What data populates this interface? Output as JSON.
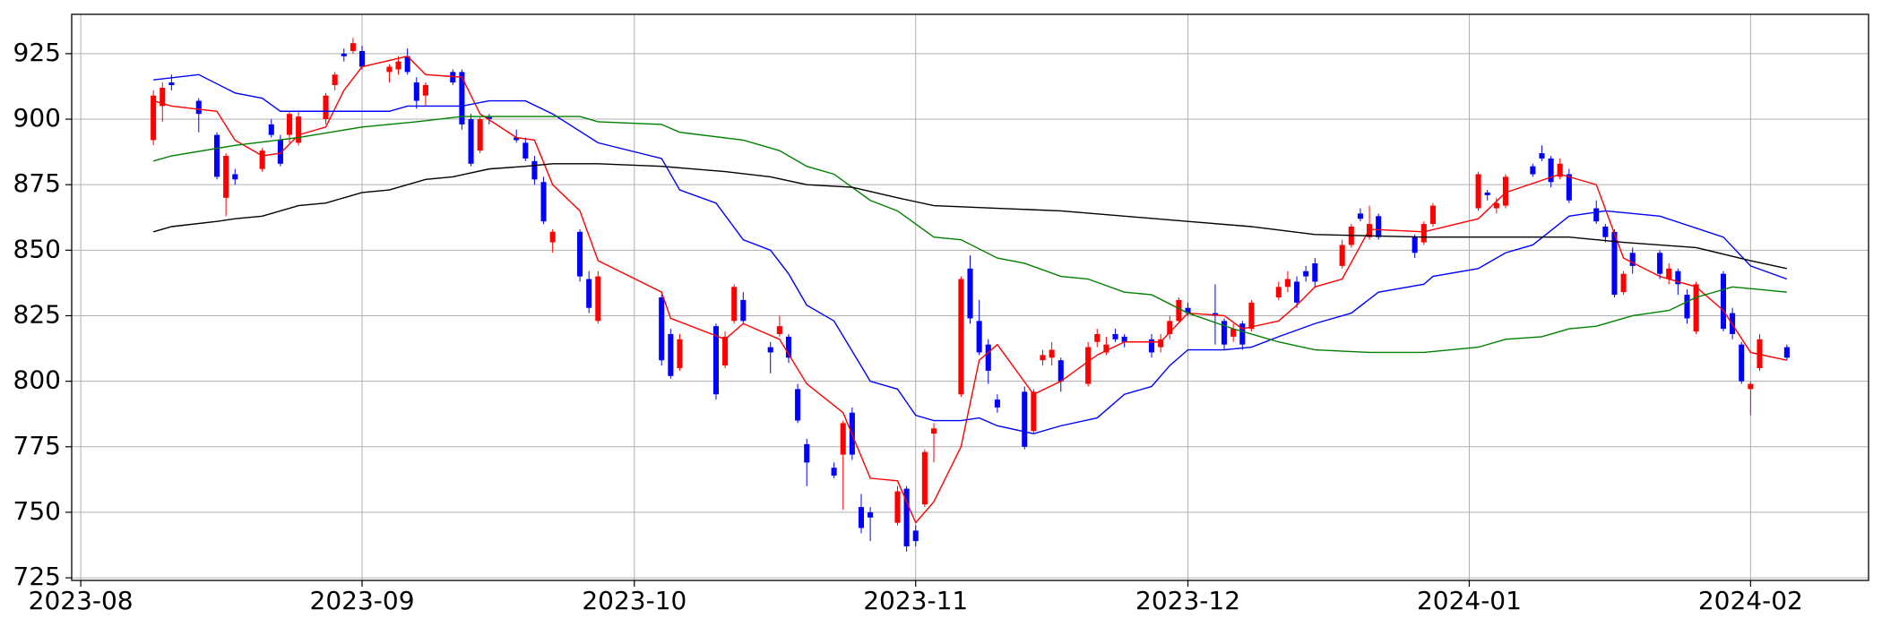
{
  "chart_data": {
    "type": "candlestick",
    "up_color": "#ff0000",
    "down_color": "#0000ff",
    "x": [
      "2023-08-09",
      "2023-08-10",
      "2023-08-11",
      "2023-08-14",
      "2023-08-16",
      "2023-08-17",
      "2023-08-18",
      "2023-08-21",
      "2023-08-22",
      "2023-08-23",
      "2023-08-24",
      "2023-08-25",
      "2023-08-28",
      "2023-08-29",
      "2023-08-30",
      "2023-08-31",
      "2023-09-01",
      "2023-09-04",
      "2023-09-05",
      "2023-09-06",
      "2023-09-07",
      "2023-09-08",
      "2023-09-11",
      "2023-09-12",
      "2023-09-13",
      "2023-09-14",
      "2023-09-15",
      "2023-09-18",
      "2023-09-19",
      "2023-09-20",
      "2023-09-21",
      "2023-09-22",
      "2023-09-25",
      "2023-09-26",
      "2023-09-27",
      "2023-10-04",
      "2023-10-05",
      "2023-10-06",
      "2023-10-10",
      "2023-10-11",
      "2023-10-12",
      "2023-10-13",
      "2023-10-16",
      "2023-10-17",
      "2023-10-18",
      "2023-10-19",
      "2023-10-20",
      "2023-10-23",
      "2023-10-24",
      "2023-10-25",
      "2023-10-26",
      "2023-10-27",
      "2023-10-30",
      "2023-10-31",
      "2023-11-01",
      "2023-11-02",
      "2023-11-03",
      "2023-11-06",
      "2023-11-07",
      "2023-11-08",
      "2023-11-09",
      "2023-11-10",
      "2023-11-13",
      "2023-11-14",
      "2023-11-15",
      "2023-11-16",
      "2023-11-17",
      "2023-11-20",
      "2023-11-21",
      "2023-11-22",
      "2023-11-23",
      "2023-11-24",
      "2023-11-27",
      "2023-11-28",
      "2023-11-29",
      "2023-11-30",
      "2023-12-01",
      "2023-12-04",
      "2023-12-05",
      "2023-12-06",
      "2023-12-07",
      "2023-12-08",
      "2023-12-11",
      "2023-12-12",
      "2023-12-13",
      "2023-12-14",
      "2023-12-15",
      "2023-12-18",
      "2023-12-19",
      "2023-12-20",
      "2023-12-21",
      "2023-12-22",
      "2023-12-26",
      "2023-12-27",
      "2023-12-28",
      "2024-01-02",
      "2024-01-03",
      "2024-01-04",
      "2024-01-05",
      "2024-01-08",
      "2024-01-09",
      "2024-01-10",
      "2024-01-11",
      "2024-01-12",
      "2024-01-15",
      "2024-01-16",
      "2024-01-17",
      "2024-01-18",
      "2024-01-19",
      "2024-01-22",
      "2024-01-23",
      "2024-01-24",
      "2024-01-25",
      "2024-01-26",
      "2024-01-29",
      "2024-01-30",
      "2024-01-31",
      "2024-02-01",
      "2024-02-02",
      "2024-02-05"
    ],
    "open": [
      892,
      905,
      914,
      907,
      894,
      870,
      879,
      881,
      898,
      892,
      894,
      891,
      900,
      913,
      925,
      926,
      926,
      918,
      919,
      924,
      914,
      909,
      918,
      918,
      900,
      888,
      901,
      893,
      891,
      884,
      876,
      853,
      857,
      839,
      823,
      832,
      818,
      805,
      821,
      806,
      823,
      831,
      813,
      818,
      817,
      797,
      776,
      767,
      772,
      788,
      752,
      750,
      746,
      759,
      743,
      753,
      780,
      795,
      843,
      823,
      814,
      793,
      796,
      781,
      808,
      809,
      808,
      799,
      815,
      811,
      818,
      817,
      816,
      813,
      818,
      823,
      828,
      826,
      823,
      817,
      822,
      820,
      832,
      836,
      838,
      842,
      845,
      844,
      852,
      864,
      855,
      863,
      855,
      853,
      860,
      866,
      872,
      866,
      867,
      882,
      887,
      885,
      878,
      879,
      866,
      859,
      857,
      834,
      849,
      849,
      839,
      842,
      833,
      819,
      841,
      826,
      814,
      797,
      805,
      813
    ],
    "high": [
      911,
      914,
      917,
      908,
      895,
      887,
      881,
      889,
      900,
      894,
      903,
      903,
      910,
      918,
      927,
      931,
      928,
      921,
      924,
      927,
      916,
      914,
      919,
      919,
      902,
      901,
      902,
      896,
      893,
      886,
      878,
      858,
      858,
      842,
      842,
      833,
      820,
      818,
      822,
      819,
      837,
      834,
      815,
      825,
      818,
      799,
      778,
      769,
      785,
      790,
      757,
      752,
      760,
      760,
      745,
      774,
      784,
      840,
      848,
      831,
      816,
      795,
      798,
      797,
      812,
      815,
      809,
      815,
      820,
      817,
      820,
      818,
      818,
      818,
      825,
      832,
      830,
      837,
      824,
      822,
      823,
      831,
      838,
      842,
      840,
      844,
      847,
      854,
      860,
      866,
      867,
      864,
      856,
      861,
      868,
      880,
      873,
      870,
      879,
      883,
      890,
      886,
      885,
      881,
      869,
      860,
      858,
      842,
      851,
      850,
      845,
      843,
      835,
      838,
      842,
      828,
      815,
      800,
      818,
      814
    ],
    "low": [
      890,
      899,
      911,
      895,
      877,
      863,
      875,
      880,
      893,
      882,
      891,
      890,
      898,
      911,
      922,
      925,
      919,
      914,
      917,
      917,
      904,
      905,
      913,
      896,
      882,
      887,
      898,
      891,
      884,
      875,
      860,
      849,
      838,
      826,
      822,
      806,
      801,
      804,
      793,
      805,
      822,
      822,
      803,
      817,
      807,
      784,
      760,
      763,
      751,
      770,
      742,
      739,
      745,
      735,
      737,
      752,
      769,
      794,
      822,
      810,
      799,
      788,
      774,
      780,
      806,
      806,
      796,
      798,
      813,
      810,
      815,
      813,
      809,
      811,
      816,
      822,
      825,
      814,
      812,
      815,
      812,
      819,
      831,
      834,
      828,
      838,
      836,
      843,
      851,
      861,
      854,
      854,
      847,
      852,
      859,
      865,
      869,
      864,
      866,
      878,
      884,
      874,
      877,
      868,
      860,
      853,
      832,
      833,
      841,
      839,
      837,
      833,
      822,
      818,
      819,
      816,
      799,
      787,
      804,
      808
    ],
    "close": [
      909,
      912,
      913,
      902,
      878,
      886,
      877,
      888,
      894,
      883,
      902,
      901,
      909,
      917,
      924,
      929,
      920,
      920,
      922,
      918,
      907,
      913,
      914,
      898,
      883,
      900,
      900,
      892,
      885,
      877,
      861,
      857,
      840,
      828,
      840,
      808,
      802,
      816,
      795,
      817,
      836,
      823,
      811,
      821,
      809,
      785,
      769,
      764,
      784,
      772,
      744,
      748,
      758,
      737,
      739,
      773,
      782,
      839,
      824,
      811,
      804,
      790,
      775,
      796,
      810,
      812,
      800,
      813,
      818,
      814,
      816,
      815,
      811,
      816,
      823,
      831,
      826,
      825,
      814,
      820,
      814,
      830,
      836,
      839,
      830,
      840,
      838,
      852,
      859,
      862,
      860,
      855,
      849,
      860,
      867,
      879,
      871,
      868,
      878,
      879,
      885,
      876,
      883,
      869,
      861,
      855,
      833,
      841,
      844,
      841,
      843,
      837,
      824,
      837,
      820,
      818,
      800,
      799,
      816,
      809
    ],
    "series": [
      {
        "color": "#ff0000",
        "x": [
          "2023-08-09",
          "2023-08-11",
          "2023-08-16",
          "2023-08-18",
          "2023-08-21",
          "2023-08-23",
          "2023-08-25",
          "2023-08-28",
          "2023-08-30",
          "2023-09-01",
          "2023-09-06",
          "2023-09-08",
          "2023-09-12",
          "2023-09-14",
          "2023-09-18",
          "2023-09-20",
          "2023-09-22",
          "2023-09-25",
          "2023-09-27",
          "2023-10-04",
          "2023-10-05",
          "2023-10-11",
          "2023-10-13",
          "2023-10-17",
          "2023-10-20",
          "2023-10-24",
          "2023-10-27",
          "2023-10-30",
          "2023-11-01",
          "2023-11-03",
          "2023-11-06",
          "2023-11-08",
          "2023-11-10",
          "2023-11-14",
          "2023-11-17",
          "2023-11-21",
          "2023-11-24",
          "2023-11-28",
          "2023-12-01",
          "2023-12-05",
          "2023-12-07",
          "2023-12-11",
          "2023-12-13",
          "2023-12-15",
          "2023-12-18",
          "2023-12-21",
          "2023-12-27",
          "2024-01-02",
          "2024-01-05",
          "2024-01-11",
          "2024-01-15",
          "2024-01-18",
          "2024-01-22",
          "2024-01-26",
          "2024-01-29",
          "2024-02-01",
          "2024-02-05"
        ],
        "values": [
          907,
          905,
          903,
          892,
          886,
          887,
          894,
          897,
          911,
          920,
          924,
          917,
          916,
          902,
          893,
          892,
          875,
          865,
          846,
          834,
          824,
          816,
          822,
          816,
          799,
          788,
          763,
          762,
          746,
          754,
          775,
          808,
          814,
          795,
          800,
          810,
          815,
          815,
          826,
          825,
          820,
          823,
          829,
          836,
          839,
          858,
          857,
          862,
          872,
          879,
          875,
          847,
          840,
          836,
          827,
          811,
          808
        ]
      },
      {
        "color": "#0000ff",
        "x": [
          "2023-08-09",
          "2023-08-14",
          "2023-08-18",
          "2023-08-21",
          "2023-08-23",
          "2023-08-30",
          "2023-09-04",
          "2023-09-06",
          "2023-09-12",
          "2023-09-15",
          "2023-09-19",
          "2023-09-22",
          "2023-09-27",
          "2023-10-04",
          "2023-10-06",
          "2023-10-10",
          "2023-10-13",
          "2023-10-16",
          "2023-10-18",
          "2023-10-20",
          "2023-10-23",
          "2023-10-27",
          "2023-10-30",
          "2023-11-01",
          "2023-11-03",
          "2023-11-06",
          "2023-11-08",
          "2023-11-10",
          "2023-11-14",
          "2023-11-17",
          "2023-11-21",
          "2023-11-24",
          "2023-11-27",
          "2023-11-29",
          "2023-12-01",
          "2023-12-05",
          "2023-12-08",
          "2023-12-11",
          "2023-12-15",
          "2023-12-19",
          "2023-12-22",
          "2023-12-27",
          "2023-12-28",
          "2024-01-02",
          "2024-01-05",
          "2024-01-08",
          "2024-01-12",
          "2024-01-16",
          "2024-01-22",
          "2024-01-29",
          "2024-02-01",
          "2024-02-05"
        ],
        "values": [
          915,
          917,
          910,
          908,
          903,
          903,
          903,
          905,
          905,
          907,
          907,
          902,
          891,
          885,
          873,
          868,
          854,
          850,
          841,
          829,
          823,
          800,
          797,
          787,
          785,
          785,
          786,
          783,
          780,
          783,
          786,
          795,
          798,
          806,
          812,
          812,
          813,
          817,
          822,
          826,
          834,
          837,
          840,
          843,
          849,
          852,
          863,
          865,
          863,
          855,
          844,
          839
        ]
      },
      {
        "color": "#008000",
        "x": [
          "2023-08-09",
          "2023-08-11",
          "2023-08-18",
          "2023-08-25",
          "2023-09-01",
          "2023-09-07",
          "2023-09-12",
          "2023-09-18",
          "2023-09-25",
          "2023-09-27",
          "2023-10-04",
          "2023-10-06",
          "2023-10-13",
          "2023-10-17",
          "2023-10-20",
          "2023-10-23",
          "2023-10-27",
          "2023-10-30",
          "2023-11-01",
          "2023-11-03",
          "2023-11-06",
          "2023-11-10",
          "2023-11-13",
          "2023-11-17",
          "2023-11-20",
          "2023-11-24",
          "2023-11-27",
          "2023-12-01",
          "2023-12-06",
          "2023-12-11",
          "2023-12-15",
          "2023-12-21",
          "2023-12-27",
          "2024-01-02",
          "2024-01-05",
          "2024-01-09",
          "2024-01-12",
          "2024-01-15",
          "2024-01-19",
          "2024-01-23",
          "2024-01-26",
          "2024-01-30",
          "2024-02-02",
          "2024-02-05"
        ],
        "values": [
          884,
          886,
          890,
          893,
          897,
          899,
          901,
          901,
          901,
          899,
          898,
          895,
          892,
          888,
          882,
          879,
          869,
          865,
          860,
          855,
          854,
          847,
          845,
          840,
          839,
          834,
          833,
          826,
          820,
          815,
          812,
          811,
          811,
          813,
          816,
          817,
          820,
          821,
          825,
          827,
          832,
          836,
          835,
          834
        ]
      },
      {
        "color": "#000000",
        "x": [
          "2023-08-09",
          "2023-08-11",
          "2023-08-16",
          "2023-08-18",
          "2023-08-21",
          "2023-08-25",
          "2023-08-28",
          "2023-09-01",
          "2023-09-04",
          "2023-09-08",
          "2023-09-11",
          "2023-09-15",
          "2023-09-19",
          "2023-09-22",
          "2023-09-27",
          "2023-10-04",
          "2023-10-11",
          "2023-10-16",
          "2023-10-20",
          "2023-10-25",
          "2023-10-30",
          "2023-11-03",
          "2023-11-10",
          "2023-11-17",
          "2023-11-24",
          "2023-12-01",
          "2023-12-08",
          "2023-12-15",
          "2023-12-27",
          "2024-01-05",
          "2024-01-12",
          "2024-01-18",
          "2024-01-26",
          "2024-02-01",
          "2024-02-05"
        ],
        "values": [
          857,
          859,
          861,
          862,
          863,
          867,
          868,
          872,
          873,
          877,
          878,
          881,
          882,
          883,
          883,
          882,
          880,
          878,
          875,
          874,
          870,
          867,
          866,
          865,
          863,
          861,
          859,
          856,
          855,
          855,
          855,
          853,
          851,
          846,
          843
        ]
      }
    ],
    "xlim": [
      "2023-07-31",
      "2024-02-14"
    ],
    "xticks": [
      "2023-08",
      "2023-09",
      "2023-10",
      "2023-11",
      "2023-12",
      "2024-01",
      "2024-02"
    ],
    "ylim": [
      724,
      940
    ],
    "yticks": [
      725,
      750,
      775,
      800,
      825,
      850,
      875,
      900,
      925
    ],
    "grid": true
  }
}
